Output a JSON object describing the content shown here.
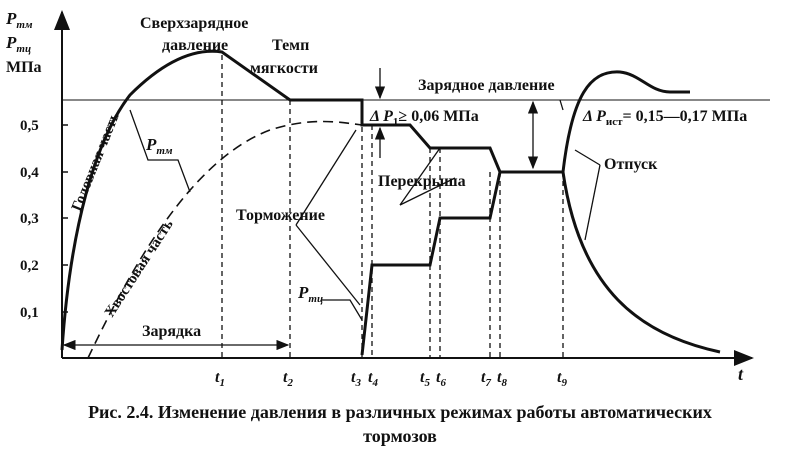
{
  "axis": {
    "y_title_1": "P",
    "y_title_1_sub": "тм",
    "y_title_2": "P",
    "y_title_2_sub": "тц",
    "y_unit": "МПа",
    "y_ticks": [
      "0,5",
      "0,4",
      "0,3",
      "0,2",
      "0,1"
    ],
    "x_title": "t",
    "x_ticks": [
      {
        "t": "t",
        "sub": "1"
      },
      {
        "t": "t",
        "sub": "2"
      },
      {
        "t": "t",
        "sub": "3"
      },
      {
        "t": "t",
        "sub": "4"
      },
      {
        "t": "t",
        "sub": "5"
      },
      {
        "t": "t",
        "sub": "6"
      },
      {
        "t": "t",
        "sub": "7"
      },
      {
        "t": "t",
        "sub": "8"
      },
      {
        "t": "t",
        "sub": "9"
      }
    ]
  },
  "labels": {
    "overcharge_1": "Сверхзарядное",
    "overcharge_2": "давление",
    "softness_1": "Темп",
    "softness_2": "мягкости",
    "charge_pressure": "Зарядное давление",
    "delta_p1_main": "Δ P",
    "delta_p1_sub": "1",
    "delta_p1_rest": "≥ 0,06 МПа",
    "delta_pst_main": "Δ P",
    "delta_pst_sub": "ист",
    "delta_pst_rest": "= 0,15—0,17 МПа",
    "head_part": "Головная часть",
    "tail_part": "Хвостовая часть",
    "ptm_main": "P",
    "ptm_sub": "тм",
    "ptc_main": "P",
    "ptc_sub": "тц",
    "braking": "Торможение",
    "overlap": "Перекрыша",
    "release": "Отпуск",
    "charging": "Зарядка"
  },
  "caption": {
    "line1": "Рис. 2.4. Изменение давления в различных режимах работы автоматических",
    "line2": "тормозов"
  }
}
